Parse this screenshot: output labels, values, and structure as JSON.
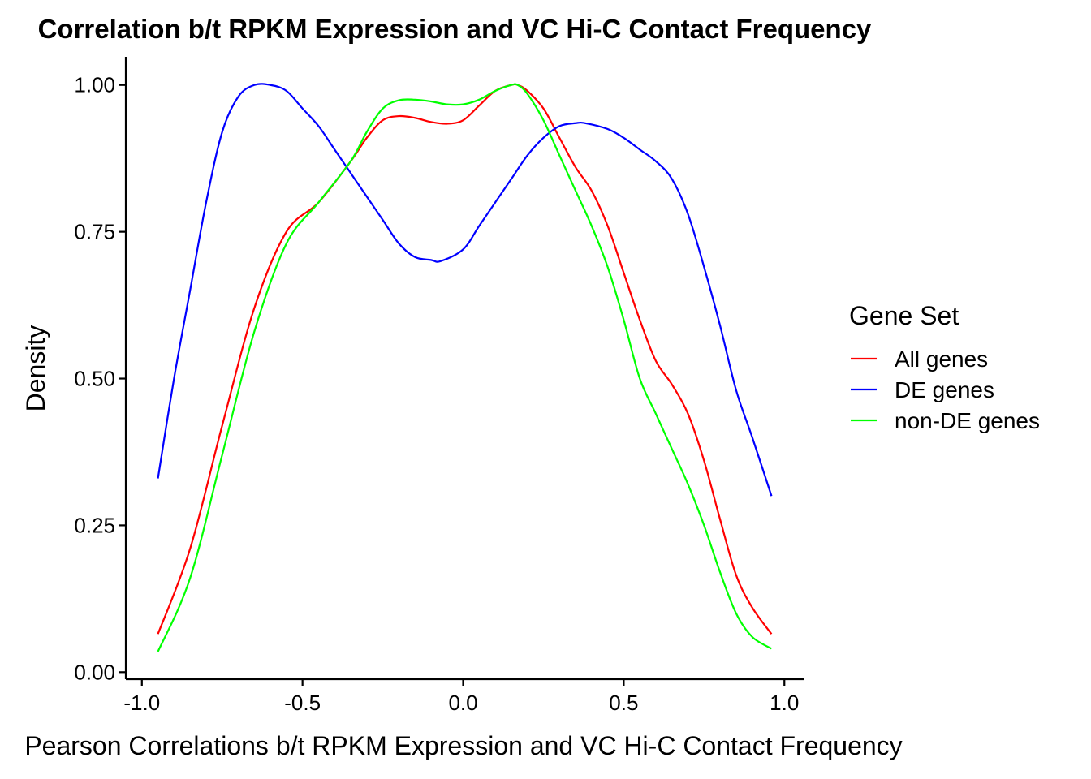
{
  "chart_data": {
    "type": "line",
    "title": "Correlation b/t RPKM Expression and VC Hi-C Contact Frequency",
    "xlabel": "Pearson Correlations b/t RPKM Expression and VC Hi-C Contact Frequency",
    "ylabel": "Density",
    "xlim": [
      -1.05,
      1.06
    ],
    "ylim": [
      -0.012,
      1.048
    ],
    "x_ticks": [
      -1.0,
      -0.5,
      0.0,
      0.5,
      1.0
    ],
    "x_tick_labels": [
      "-1.0",
      "-0.5",
      "0.0",
      "0.5",
      "1.0"
    ],
    "y_ticks": [
      0.0,
      0.25,
      0.5,
      0.75,
      1.0
    ],
    "y_tick_labels": [
      "0.00",
      "0.25",
      "0.50",
      "0.75",
      "1.00"
    ],
    "grid": false,
    "legend": {
      "title": "Gene Set",
      "position": "right"
    },
    "series": [
      {
        "name": "All genes",
        "color": "#ff0000",
        "x": [
          -0.95,
          -0.85,
          -0.75,
          -0.65,
          -0.55,
          -0.45,
          -0.35,
          -0.3,
          -0.25,
          -0.2,
          -0.15,
          -0.1,
          -0.05,
          0.0,
          0.05,
          0.1,
          0.15,
          0.17,
          0.2,
          0.25,
          0.3,
          0.35,
          0.4,
          0.45,
          0.5,
          0.55,
          0.6,
          0.65,
          0.7,
          0.75,
          0.8,
          0.85,
          0.9,
          0.96
        ],
        "y": [
          0.065,
          0.21,
          0.42,
          0.62,
          0.75,
          0.8,
          0.87,
          0.91,
          0.94,
          0.947,
          0.944,
          0.937,
          0.934,
          0.94,
          0.965,
          0.99,
          1.0,
          1.0,
          0.99,
          0.96,
          0.91,
          0.86,
          0.82,
          0.76,
          0.68,
          0.6,
          0.53,
          0.49,
          0.44,
          0.36,
          0.26,
          0.165,
          0.11,
          0.065
        ]
      },
      {
        "name": "DE genes",
        "color": "#0000ff",
        "x": [
          -0.95,
          -0.9,
          -0.85,
          -0.8,
          -0.75,
          -0.7,
          -0.65,
          -0.6,
          -0.55,
          -0.5,
          -0.45,
          -0.4,
          -0.35,
          -0.3,
          -0.25,
          -0.2,
          -0.15,
          -0.1,
          -0.07,
          0.0,
          0.05,
          0.1,
          0.15,
          0.2,
          0.25,
          0.3,
          0.35,
          0.38,
          0.45,
          0.5,
          0.55,
          0.6,
          0.65,
          0.7,
          0.75,
          0.8,
          0.85,
          0.9,
          0.96
        ],
        "y": [
          0.33,
          0.5,
          0.65,
          0.8,
          0.92,
          0.98,
          1.0,
          1.0,
          0.99,
          0.96,
          0.93,
          0.89,
          0.85,
          0.81,
          0.77,
          0.73,
          0.707,
          0.702,
          0.7,
          0.72,
          0.76,
          0.8,
          0.84,
          0.88,
          0.91,
          0.93,
          0.935,
          0.935,
          0.925,
          0.91,
          0.89,
          0.87,
          0.84,
          0.78,
          0.69,
          0.59,
          0.48,
          0.4,
          0.3
        ]
      },
      {
        "name": "non-DE genes",
        "color": "#00ff00",
        "x": [
          -0.95,
          -0.85,
          -0.75,
          -0.65,
          -0.55,
          -0.45,
          -0.35,
          -0.3,
          -0.25,
          -0.2,
          -0.15,
          -0.1,
          -0.05,
          0.0,
          0.05,
          0.1,
          0.15,
          0.17,
          0.2,
          0.25,
          0.3,
          0.35,
          0.4,
          0.45,
          0.5,
          0.55,
          0.6,
          0.65,
          0.7,
          0.75,
          0.8,
          0.85,
          0.9,
          0.96
        ],
        "y": [
          0.035,
          0.16,
          0.37,
          0.58,
          0.73,
          0.8,
          0.87,
          0.92,
          0.96,
          0.974,
          0.975,
          0.972,
          0.967,
          0.967,
          0.975,
          0.99,
          1.0,
          1.0,
          0.985,
          0.94,
          0.88,
          0.82,
          0.76,
          0.69,
          0.6,
          0.5,
          0.44,
          0.38,
          0.32,
          0.25,
          0.17,
          0.1,
          0.06,
          0.04
        ]
      }
    ]
  }
}
